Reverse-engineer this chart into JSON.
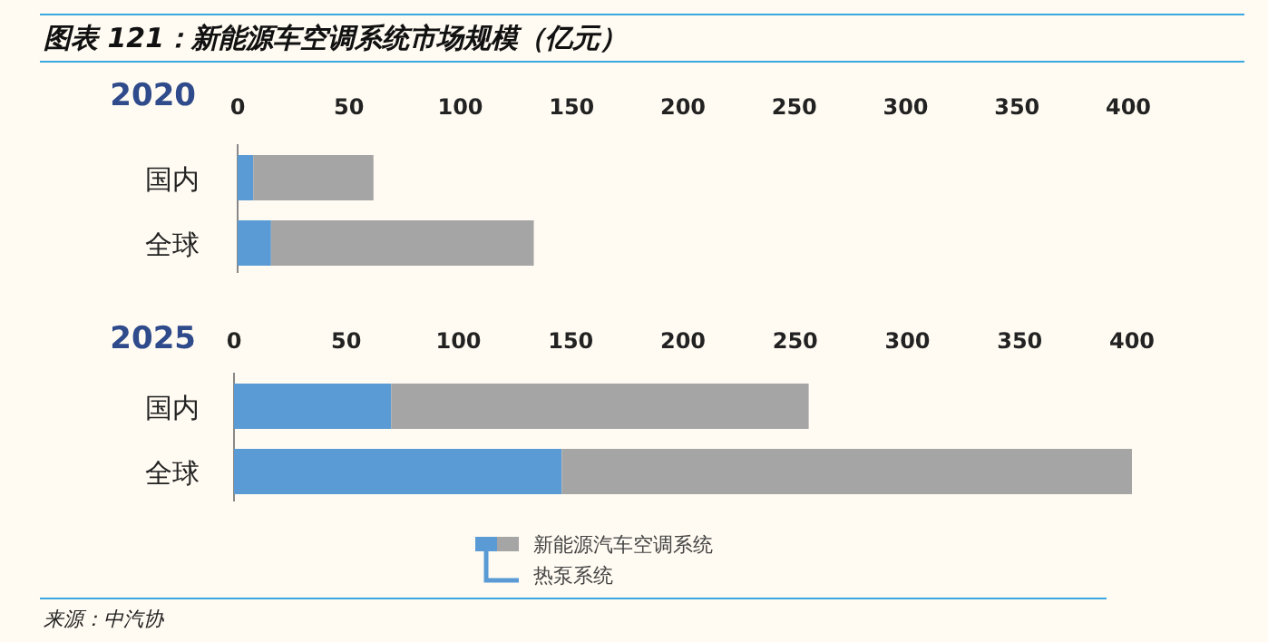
{
  "chart_data": [
    {
      "type": "bar",
      "orientation": "horizontal",
      "stacked": true,
      "title": "图表 121：新能源车空调系统市场规模（亿元）",
      "subtitle": "2020",
      "categories": [
        "国内",
        "全球"
      ],
      "xlim": [
        0,
        400
      ],
      "xticks": [
        0,
        50,
        100,
        150,
        200,
        250,
        300,
        350,
        400
      ],
      "series": [
        {
          "color": "#5b9bd5",
          "values": [
            7,
            15
          ]
        },
        {
          "color": "#a5a5a5",
          "values": [
            54,
            118
          ]
        }
      ]
    },
    {
      "type": "bar",
      "orientation": "horizontal",
      "stacked": true,
      "subtitle": "2025",
      "categories": [
        "国内",
        "全球"
      ],
      "xlim": [
        0,
        400
      ],
      "xticks": [
        0,
        50,
        100,
        150,
        200,
        250,
        300,
        350,
        400
      ],
      "legend": "bottom",
      "annotations": [
        "来源：中汽协"
      ],
      "series": [
        {
          "name": "热泵系统",
          "color": "#5b9bd5",
          "values": [
            70,
            146
          ]
        },
        {
          "name": "新能源汽车空调系统",
          "color": "#a5a5a5",
          "values": [
            186,
            254
          ]
        }
      ]
    }
  ]
}
